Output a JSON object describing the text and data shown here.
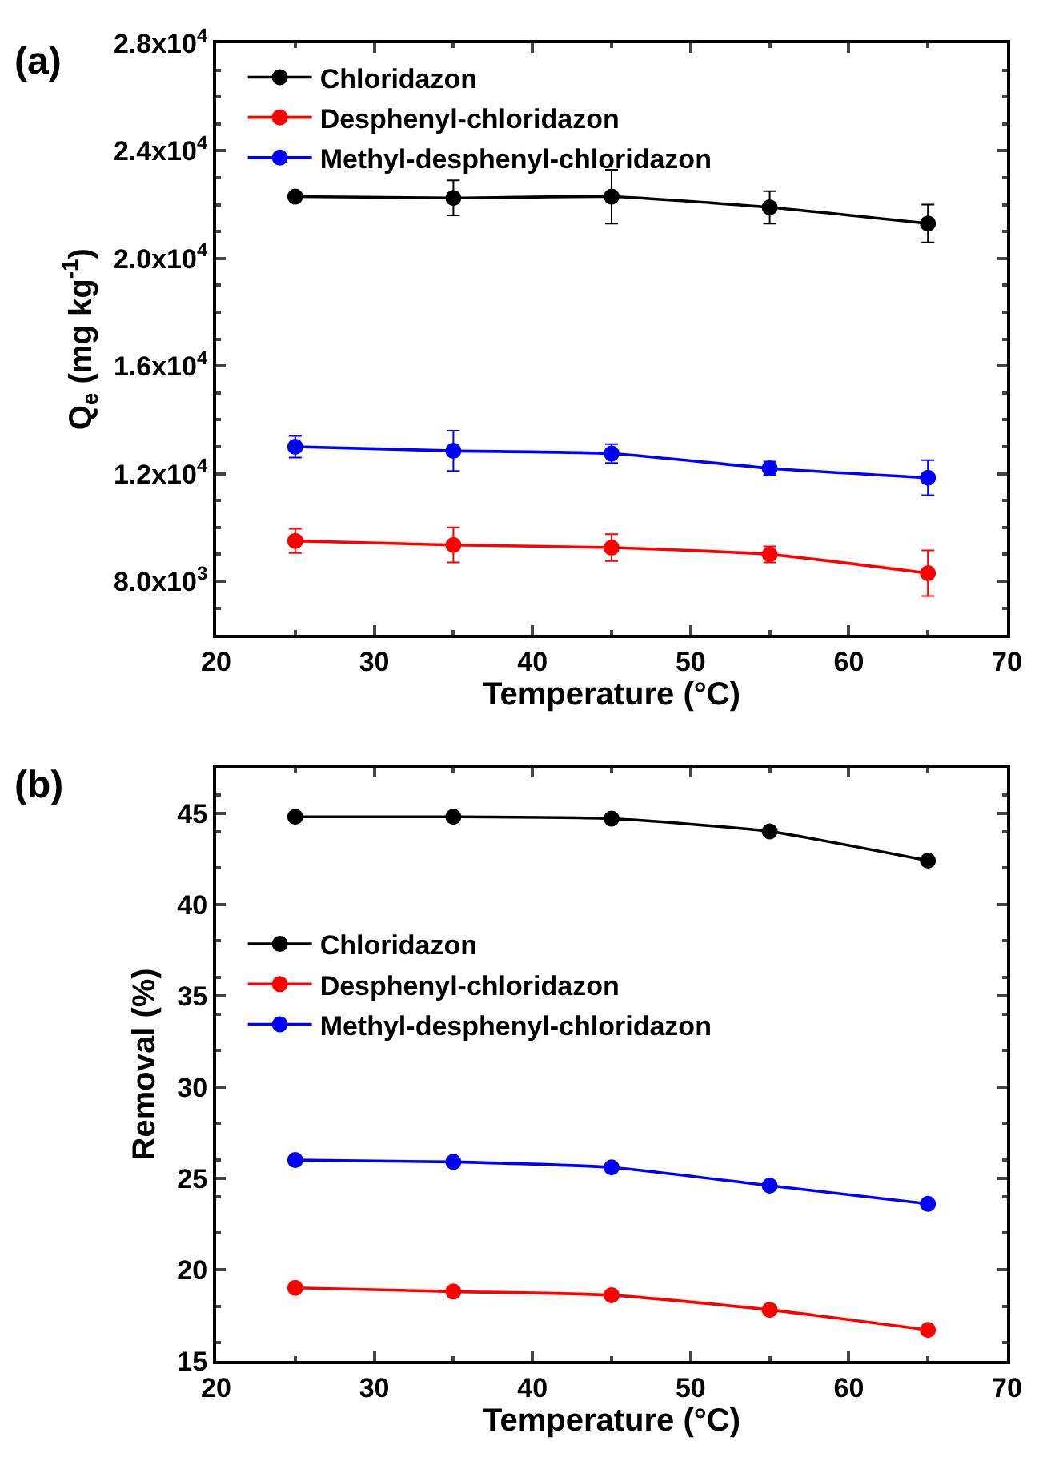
{
  "chart_data": [
    {
      "type": "line",
      "title": "(a)",
      "xlabel": "Temperature (°C)",
      "ylabel": "Q$_{e}$ (mg kg$^{-1}$)",
      "x": [
        25,
        35,
        45,
        55,
        65
      ],
      "series": [
        {
          "name": "Chloridazon",
          "color": "#000000",
          "values": [
            22300,
            22250,
            22300,
            21900,
            21300
          ],
          "errors": [
            100,
            650,
            1000,
            600,
            700
          ]
        },
        {
          "name": "Desphenyl-chloridazon",
          "color": "#ff0000",
          "values": [
            9500,
            9350,
            9250,
            9000,
            8300
          ],
          "errors": [
            450,
            650,
            500,
            300,
            850
          ]
        },
        {
          "name": "Methyl-desphenyl-chloridazon",
          "color": "#0000ff",
          "values": [
            13000,
            12850,
            12750,
            12200,
            11850
          ],
          "errors": [
            400,
            750,
            350,
            250,
            650
          ]
        }
      ],
      "xlim": [
        20,
        70
      ],
      "xticks": [
        20,
        30,
        40,
        50,
        60,
        70
      ],
      "ylim": [
        6000,
        28000
      ],
      "yticks": [
        {
          "value": 8000,
          "label": "8.0x10$^{3}$"
        },
        {
          "value": 12000,
          "label": "1.2x10$^{4}$"
        },
        {
          "value": 16000,
          "label": "1.6x10$^{4}$"
        },
        {
          "value": 20000,
          "label": "2.0x10$^{4}$"
        },
        {
          "value": 24000,
          "label": "2.4x10$^{4}$"
        },
        {
          "value": 28000,
          "label": "2.8x10$^{4}$"
        }
      ],
      "legend": "top left",
      "marker": "circle"
    },
    {
      "type": "line",
      "title": "(b)",
      "xlabel": "Temperature (°C)",
      "ylabel": "Removal (%)",
      "x": [
        25,
        35,
        45,
        55,
        65
      ],
      "series": [
        {
          "name": "Chloridazon",
          "color": "#000000",
          "values": [
            44.8,
            44.8,
            44.7,
            44.0,
            42.4
          ]
        },
        {
          "name": "Desphenyl-chloridazon",
          "color": "#ff0000",
          "values": [
            19.0,
            18.8,
            18.6,
            17.8,
            16.7
          ]
        },
        {
          "name": "Methyl-desphenyl-chloridazon",
          "color": "#0000ff",
          "values": [
            26.0,
            25.9,
            25.6,
            24.6,
            23.6
          ]
        }
      ],
      "xlim": [
        20,
        70
      ],
      "xticks": [
        20,
        30,
        40,
        50,
        60,
        70
      ],
      "ylim": [
        15,
        47.5
      ],
      "yticks": [
        15,
        20,
        25,
        30,
        35,
        40,
        45
      ],
      "legend": "left",
      "marker": "circle"
    }
  ]
}
